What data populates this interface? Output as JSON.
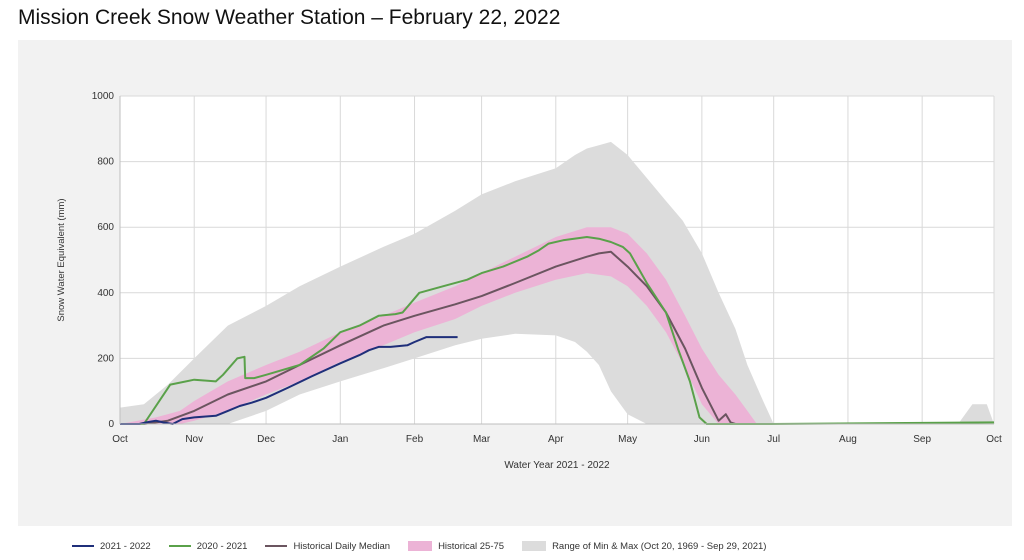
{
  "page_title": "Mission Creek Snow Weather Station – February 22, 2022",
  "colors": {
    "wy2022": "#1f2f7a",
    "wy2021": "#5aa14a",
    "median": "#6b5560",
    "band2575": "#ecb3d6",
    "minmax": "#dcdcdc",
    "panel": "#f2f2f2"
  },
  "legend": [
    {
      "label": "2021 - 2022",
      "kind": "line",
      "color": "#1f2f7a"
    },
    {
      "label": "2020 - 2021",
      "kind": "line",
      "color": "#5aa14a"
    },
    {
      "label": "Historical Daily Median",
      "kind": "line",
      "color": "#6b5560"
    },
    {
      "label": "Historical 25-75",
      "kind": "box",
      "color": "#ecb3d6"
    },
    {
      "label": "Range of Min & Max (Oct 20, 1969 - Sep 29, 2021)",
      "kind": "box",
      "color": "#dcdcdc"
    }
  ],
  "chart_data": {
    "type": "area",
    "xlabel": "Water Year 2021 - 2022",
    "ylabel": "Snow Water Equivalent (mm)",
    "ylim": [
      0,
      1000
    ],
    "xlim": [
      0,
      365
    ],
    "grid": true,
    "legend_position": "bottom",
    "y_ticks": [
      0,
      200,
      400,
      600,
      800,
      1000
    ],
    "x_ticks": [
      {
        "label": "Oct",
        "day": 0
      },
      {
        "label": "Nov",
        "day": 31
      },
      {
        "label": "Dec",
        "day": 61
      },
      {
        "label": "Jan",
        "day": 92
      },
      {
        "label": "Feb",
        "day": 123
      },
      {
        "label": "Mar",
        "day": 151
      },
      {
        "label": "Apr",
        "day": 182
      },
      {
        "label": "May",
        "day": 212
      },
      {
        "label": "Jun",
        "day": 243
      },
      {
        "label": "Jul",
        "day": 273
      },
      {
        "label": "Aug",
        "day": 304
      },
      {
        "label": "Sep",
        "day": 335
      },
      {
        "label": "Oct",
        "day": 365
      }
    ],
    "series": [
      {
        "name": "Range of Min & Max (Oct 20, 1969 - Sep 29, 2021)",
        "kind": "band",
        "x": [
          0,
          10,
          20,
          31,
          45,
          61,
          75,
          92,
          110,
          123,
          140,
          151,
          165,
          182,
          190,
          195,
          200,
          205,
          212,
          220,
          228,
          235,
          243,
          250,
          257,
          262,
          268,
          273,
          290,
          310,
          335,
          350,
          356,
          362,
          365
        ],
        "low": [
          0,
          0,
          0,
          0,
          0,
          40,
          90,
          130,
          170,
          200,
          240,
          260,
          275,
          270,
          250,
          220,
          180,
          100,
          30,
          0,
          0,
          0,
          0,
          0,
          0,
          0,
          0,
          0,
          0,
          0,
          0,
          0,
          0,
          0,
          0
        ],
        "high": [
          50,
          60,
          120,
          200,
          300,
          360,
          420,
          480,
          540,
          580,
          650,
          700,
          740,
          780,
          820,
          840,
          850,
          860,
          820,
          750,
          680,
          620,
          520,
          400,
          290,
          180,
          80,
          0,
          0,
          0,
          0,
          0,
          60,
          60,
          0
        ]
      },
      {
        "name": "Historical 25-75",
        "kind": "band",
        "x": [
          0,
          15,
          25,
          31,
          45,
          61,
          75,
          92,
          110,
          123,
          140,
          151,
          165,
          182,
          195,
          205,
          212,
          220,
          228,
          236,
          243,
          250,
          257,
          262,
          266
        ],
        "low": [
          0,
          0,
          0,
          10,
          40,
          90,
          130,
          190,
          240,
          280,
          320,
          360,
          400,
          440,
          460,
          450,
          420,
          360,
          280,
          170,
          60,
          0,
          0,
          0,
          0
        ],
        "high": [
          0,
          20,
          40,
          70,
          130,
          180,
          220,
          280,
          330,
          370,
          420,
          460,
          510,
          570,
          600,
          600,
          580,
          520,
          440,
          330,
          230,
          150,
          90,
          40,
          0
        ]
      },
      {
        "name": "Historical Daily Median",
        "kind": "line",
        "x": [
          10,
          20,
          31,
          45,
          61,
          75,
          92,
          110,
          123,
          140,
          151,
          165,
          182,
          195,
          200,
          205,
          212,
          220,
          228,
          236,
          243,
          250,
          253,
          255,
          257
        ],
        "y": [
          0,
          10,
          40,
          90,
          130,
          180,
          240,
          300,
          330,
          365,
          390,
          430,
          480,
          510,
          520,
          525,
          480,
          420,
          340,
          230,
          110,
          10,
          30,
          5,
          0
        ]
      },
      {
        "name": "2020 - 2021",
        "kind": "line",
        "x": [
          0,
          10,
          21,
          31,
          40,
          43,
          49,
          52,
          52.3,
          56,
          61,
          75,
          85,
          92,
          100,
          108,
          115,
          118,
          125,
          135,
          145,
          151,
          160,
          170,
          175,
          179,
          185,
          195,
          200,
          205,
          210,
          213,
          220,
          228,
          233,
          238,
          242,
          245,
          248,
          252,
          262,
          272,
          365
        ],
        "y": [
          0,
          0,
          120,
          135,
          130,
          150,
          200,
          205,
          140,
          140,
          150,
          180,
          230,
          280,
          300,
          330,
          335,
          340,
          400,
          420,
          440,
          460,
          480,
          510,
          530,
          550,
          560,
          570,
          565,
          555,
          540,
          520,
          430,
          340,
          230,
          130,
          20,
          0,
          0,
          0,
          0,
          0,
          5
        ]
      },
      {
        "name": "2021 - 2022",
        "kind": "line",
        "x": [
          0,
          8,
          11,
          15,
          18,
          22,
          26,
          31,
          40,
          45,
          50,
          55,
          61,
          70,
          80,
          92,
          100,
          104,
          108,
          113,
          120,
          123,
          128,
          135,
          141
        ],
        "y": [
          0,
          0,
          5,
          10,
          5,
          0,
          15,
          20,
          25,
          40,
          55,
          65,
          80,
          110,
          145,
          185,
          210,
          225,
          235,
          235,
          240,
          250,
          265,
          265,
          265
        ]
      }
    ]
  }
}
